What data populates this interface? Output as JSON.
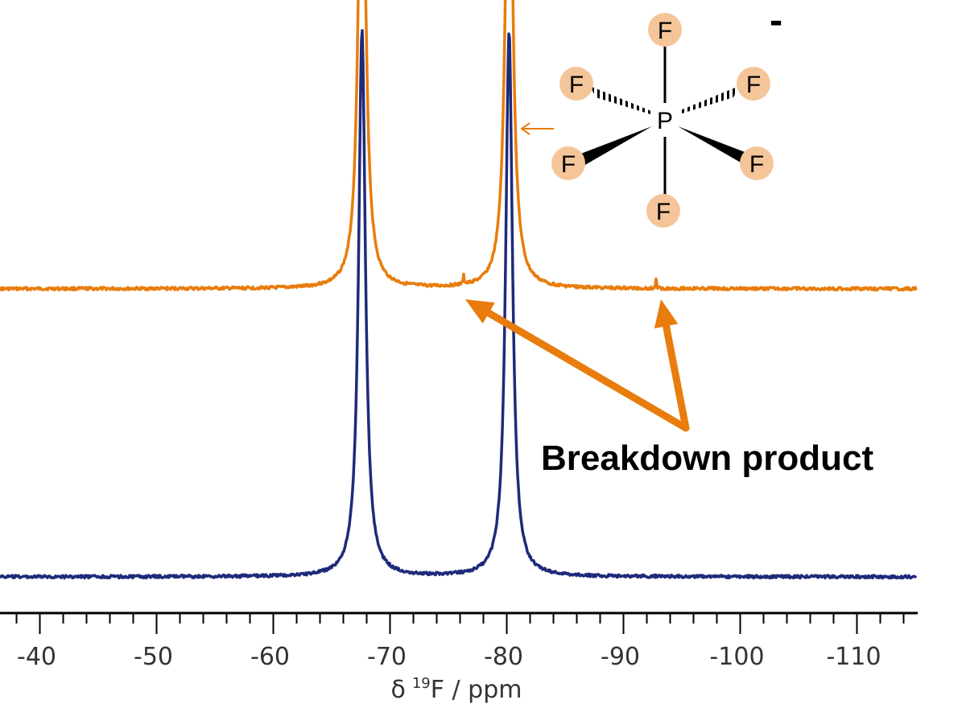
{
  "chart_data": {
    "type": "line",
    "title": "",
    "xlabel": "δ ¹⁹F / ppm",
    "xlabel_parts": {
      "delta": "δ",
      "superscript": "19",
      "rest": "F / ppm"
    },
    "ylabel": "",
    "x_reversed": true,
    "xlim": [
      -37,
      -115
    ],
    "grid": false,
    "legend": "none",
    "x_ticks": [
      -40,
      -50,
      -60,
      -70,
      -80,
      -90,
      -100,
      -110
    ],
    "x_tick_labels": [
      "-40",
      "-50",
      "-60",
      "-70",
      "-80",
      "-90",
      "-100",
      "-110"
    ],
    "series": [
      {
        "color": "#e87d0d",
        "offset": 1,
        "peaks": [
          {
            "x": -67.6,
            "height": 10,
            "clipped": true
          },
          {
            "x": -76.3,
            "height": 0.2,
            "narrow": true
          },
          {
            "x": -80.2,
            "height": 10,
            "clipped": true
          },
          {
            "x": -92.8,
            "height": 0.2,
            "narrow": true
          }
        ]
      },
      {
        "color": "#1f2a7a",
        "offset": 0,
        "peaks": [
          {
            "x": -67.6,
            "height": 10,
            "clipped": true
          },
          {
            "x": -80.2,
            "height": 10,
            "clipped": true
          }
        ]
      }
    ],
    "annotations": [
      {
        "text": "Breakdown product",
        "targets": [
          -76.3,
          -92.8
        ],
        "color": "#e87d0d"
      }
    ]
  },
  "molecule": {
    "central_atom": "P",
    "ligand_atom": "F",
    "charge": "-",
    "ligand_color": "#f5c59a"
  }
}
